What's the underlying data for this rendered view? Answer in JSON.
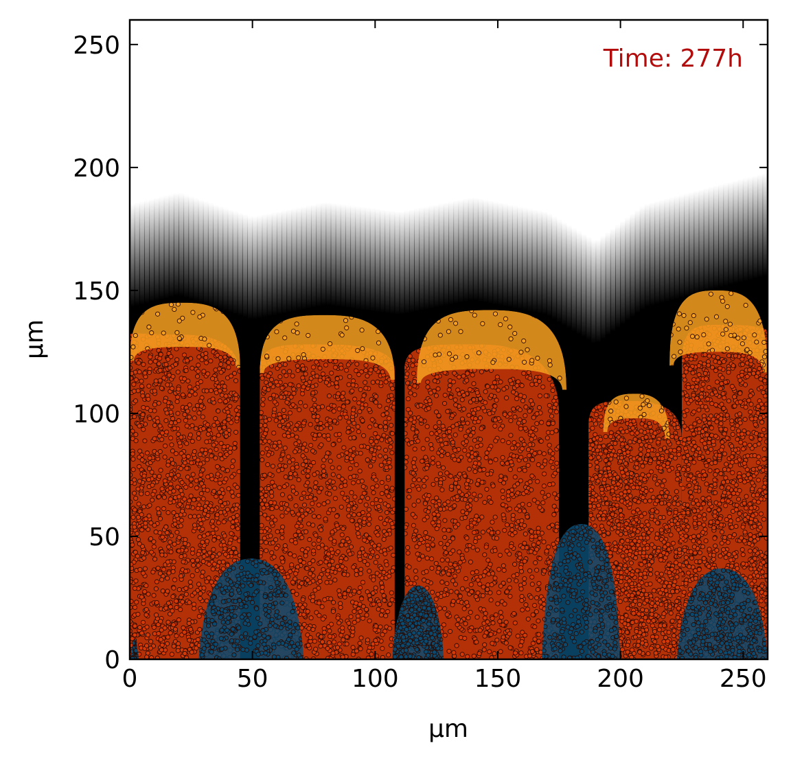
{
  "chart_data": {
    "type": "scatter",
    "title": "",
    "xlabel": "μm",
    "ylabel": "μm",
    "xlim": [
      0,
      260
    ],
    "ylim": [
      0,
      260
    ],
    "x_ticks": [
      "0",
      "50",
      "100",
      "150",
      "200",
      "250"
    ],
    "y_ticks": [
      "0",
      "50",
      "100",
      "150",
      "200",
      "250"
    ],
    "grid": false,
    "annotation": {
      "text": "Time: 277h",
      "color": "#b20c0c",
      "placement": "top-right"
    },
    "background_field": {
      "description_colormap": "grayscale",
      "values_high_near": "bottom",
      "boundary_profile": [
        [
          0,
          185
        ],
        [
          20,
          190
        ],
        [
          50,
          180
        ],
        [
          80,
          186
        ],
        [
          110,
          182
        ],
        [
          140,
          188
        ],
        [
          170,
          182
        ],
        [
          190,
          170
        ],
        [
          210,
          185
        ],
        [
          240,
          193
        ],
        [
          260,
          198
        ]
      ]
    },
    "series": [
      {
        "color": "#d43a08",
        "colonies": [
          {
            "x_range": [
              0,
              45
            ],
            "top": 132,
            "left_y": 132,
            "right_y": 115
          },
          {
            "x_range": [
              53,
              108
            ],
            "top": 128,
            "left_y": 118,
            "right_y": 118
          },
          {
            "x_range": [
              112,
              175
            ],
            "top": 128,
            "left_y": 118,
            "right_y": 100
          },
          {
            "x_range": [
              187,
              225
            ],
            "top": 105,
            "left_y": 95,
            "right_y": 90
          },
          {
            "x_range": [
              225,
              260
            ],
            "top": 136,
            "left_y": 120,
            "right_y": 133
          }
        ]
      },
      {
        "color": "#f7a020",
        "colonies": [
          {
            "x_range": [
              0,
              45
            ],
            "top": 145,
            "bottom": 127
          },
          {
            "x_range": [
              53,
              108
            ],
            "top": 140,
            "bottom": 122
          },
          {
            "x_range": [
              117,
              178
            ],
            "top": 142,
            "bottom": 118
          },
          {
            "x_range": [
              193,
              220
            ],
            "top": 108,
            "bottom": 98
          },
          {
            "x_range": [
              220,
              260
            ],
            "top": 150,
            "bottom": 125
          }
        ]
      },
      {
        "color": "#0a4a70",
        "colonies": [
          {
            "x_range": [
              28,
              71
            ],
            "top": 41
          },
          {
            "x_range": [
              107,
              128
            ],
            "top": 30
          },
          {
            "x_range": [
              168,
              200
            ],
            "top": 55
          },
          {
            "x_range": [
              223,
              260
            ],
            "top": 37
          },
          {
            "x_range": [
              0,
              4
            ],
            "top": 8
          }
        ]
      }
    ]
  }
}
